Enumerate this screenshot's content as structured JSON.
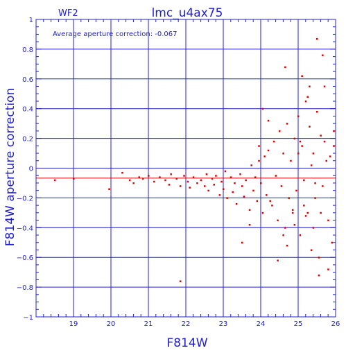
{
  "chart_data": {
    "type": "scatter",
    "title": "lmc_u4ax75",
    "corner_label": "WF2",
    "annotation": "Average aperture correction: -0.067",
    "xlabel": "F814W",
    "ylabel": "F814W aperture correction",
    "xlim": [
      18,
      26
    ],
    "ylim": [
      -1,
      1
    ],
    "xticks": [
      19,
      20,
      21,
      22,
      23,
      24,
      25,
      26
    ],
    "yticks": [
      -1,
      -0.8,
      -0.6,
      -0.4,
      -0.2,
      0,
      0.2,
      0.4,
      0.6,
      0.8,
      1
    ],
    "ytick_labels": [
      "−1",
      "−0.8",
      "−0.6",
      "−0.4",
      "−0.2",
      "0",
      "0.2",
      "0.4",
      "0.6",
      "0.8",
      "1"
    ],
    "grid": true,
    "reference_line": {
      "y": -0.067,
      "color": "#e00000"
    },
    "colors": {
      "axis": "#2020d0",
      "grid": "#2020d0",
      "points": "#e00000"
    },
    "series": [
      {
        "marker": "square",
        "x": [
          18.5,
          19.0,
          19.95,
          20.3,
          20.5,
          20.6,
          20.75,
          20.85,
          21.0,
          21.15,
          21.3,
          21.45,
          21.55,
          21.6,
          21.75,
          21.85,
          21.95,
          22.05,
          22.1,
          22.2,
          22.3,
          22.4,
          22.5,
          22.55,
          22.6,
          22.7,
          22.75,
          22.8,
          22.9,
          22.95,
          23.0,
          23.05,
          23.1,
          23.2,
          23.25,
          23.3,
          23.35,
          23.45,
          23.5,
          23.55,
          23.6,
          23.7,
          23.75,
          23.8,
          23.85,
          23.9,
          23.95,
          24.0,
          24.05,
          24.1,
          24.15,
          24.2,
          24.3,
          24.35,
          24.4,
          24.45,
          24.5,
          24.55,
          24.6,
          24.65,
          24.7,
          24.75,
          24.8,
          24.85,
          24.9,
          24.95,
          25.0,
          25.05,
          25.1,
          25.15,
          25.2,
          25.25,
          25.3,
          25.35,
          25.4,
          25.45,
          25.5,
          25.55,
          25.6,
          25.65,
          25.7,
          25.8,
          25.85,
          25.9,
          25.95,
          21.85,
          23.5,
          24.45,
          24.65,
          24.05,
          24.2,
          25.1,
          25.3,
          25.5,
          25.55,
          25.65,
          25.8,
          25.15,
          25.25,
          25.4,
          25.6,
          25.7,
          25.95,
          24.7,
          24.9,
          25.0,
          25.2,
          25.35,
          23.95,
          23.7,
          24.25,
          24.6,
          24.85,
          25.05,
          25.45,
          25.75
        ],
        "y": [
          -0.08,
          -0.07,
          -0.14,
          -0.03,
          -0.08,
          -0.1,
          -0.06,
          -0.07,
          -0.05,
          -0.09,
          -0.06,
          -0.08,
          -0.11,
          -0.04,
          -0.07,
          -0.12,
          -0.05,
          -0.09,
          -0.13,
          -0.06,
          -0.1,
          -0.08,
          -0.12,
          -0.04,
          -0.15,
          -0.07,
          -0.11,
          -0.05,
          -0.18,
          -0.09,
          -0.14,
          -0.02,
          -0.2,
          -0.06,
          -0.16,
          -0.1,
          -0.24,
          -0.04,
          -0.12,
          -0.19,
          -0.08,
          -0.28,
          0.02,
          -0.15,
          -0.06,
          -0.22,
          0.05,
          -0.1,
          -0.3,
          0.08,
          -0.18,
          0.12,
          -0.25,
          0.18,
          -0.05,
          -0.35,
          0.25,
          -0.12,
          0.1,
          -0.4,
          0.3,
          -0.2,
          0.05,
          -0.28,
          0.2,
          -0.15,
          0.35,
          -0.45,
          0.15,
          -0.08,
          0.45,
          -0.3,
          0.28,
          -0.55,
          0.1,
          -0.2,
          0.38,
          -0.6,
          0.22,
          -0.12,
          0.55,
          -0.35,
          0.08,
          -0.5,
          0.15,
          -0.76,
          -0.5,
          -0.62,
          0.68,
          0.4,
          0.32,
          0.62,
          0.55,
          0.87,
          -0.72,
          0.76,
          -0.68,
          -0.25,
          0.48,
          -0.4,
          -0.3,
          0.18,
          0.25,
          -0.52,
          -0.38,
          0.1,
          -0.32,
          0.02,
          0.15,
          -0.38,
          -0.22,
          -0.45,
          -0.3,
          0.18,
          -0.1,
          0.05
        ]
      }
    ]
  }
}
